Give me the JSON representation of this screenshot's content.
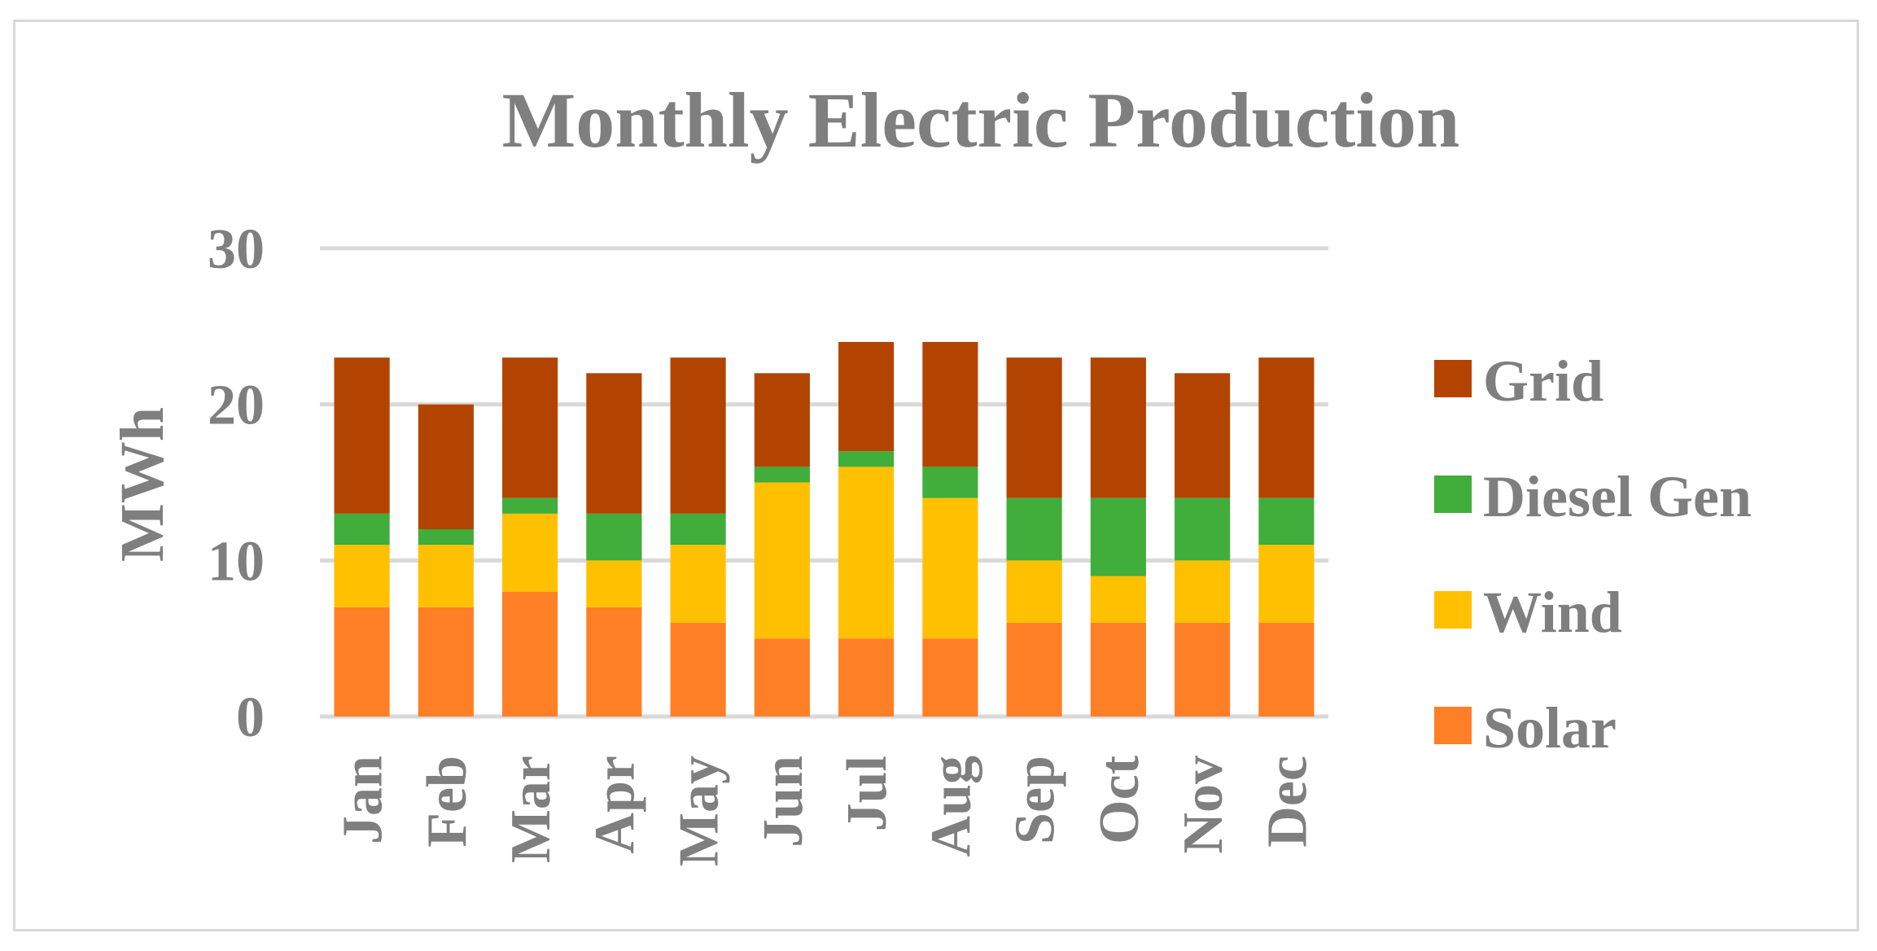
{
  "chart_data": {
    "type": "bar",
    "stacked": true,
    "title": "Monthly Electric Production",
    "ylabel": "MWh",
    "xlabel": "",
    "ylim": [
      0,
      30
    ],
    "yticks": [
      "0",
      "10",
      "20",
      "30"
    ],
    "grid": true,
    "legend_position": "right",
    "categories": [
      "Jan",
      "Feb",
      "Mar",
      "Apr",
      "May",
      "Jun",
      "Jul",
      "Aug",
      "Sep",
      "Oct",
      "Nov",
      "Dec"
    ],
    "series": [
      {
        "name": "Solar",
        "color": "#ff7f27",
        "values": [
          7,
          7,
          8,
          7,
          6,
          5,
          5,
          5,
          6,
          6,
          6,
          6
        ]
      },
      {
        "name": "Wind",
        "color": "#ffc000",
        "values": [
          4,
          4,
          5,
          3,
          5,
          10,
          11,
          9,
          4,
          3,
          4,
          5
        ]
      },
      {
        "name": "Diesel Gen",
        "color": "#41ad3b",
        "values": [
          2,
          1,
          1,
          3,
          2,
          1,
          1,
          2,
          4,
          5,
          4,
          3
        ]
      },
      {
        "name": "Grid",
        "color": "#b34400",
        "values": [
          10,
          8,
          9,
          9,
          10,
          6,
          7,
          8,
          9,
          9,
          8,
          9
        ]
      }
    ]
  }
}
